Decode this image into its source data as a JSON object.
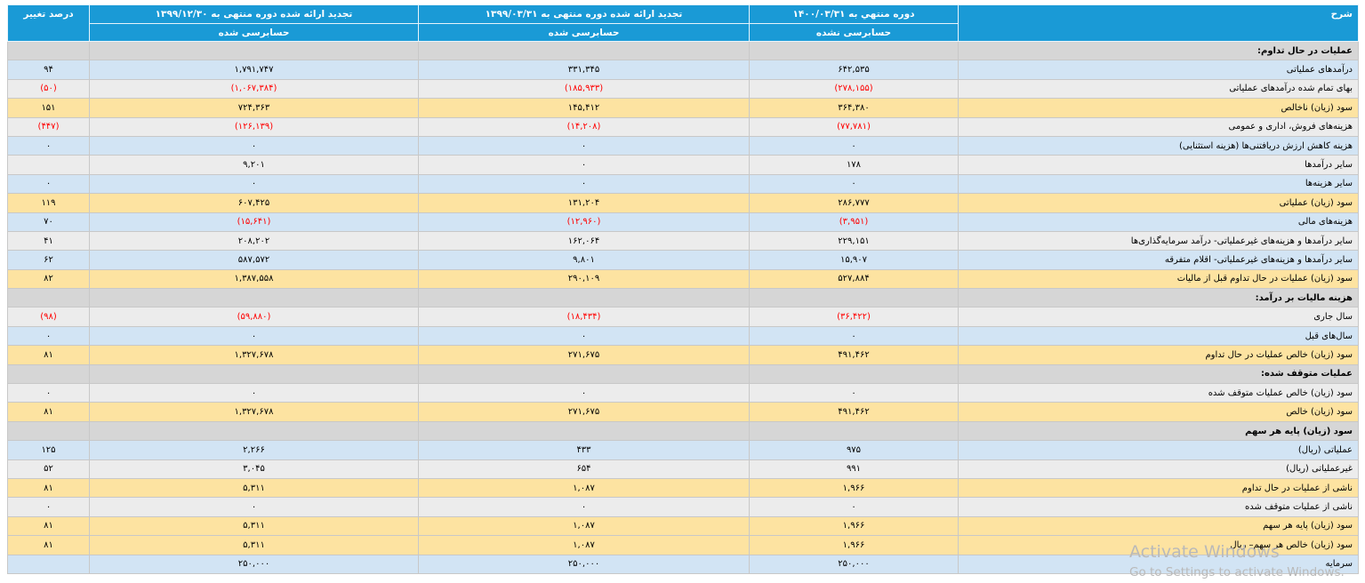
{
  "header": {
    "description": "شرح",
    "col1_title": "دوره منتهي به ۱۴۰۰/۰۳/۳۱",
    "col1_status": "حسابرسی نشده",
    "col2_title": "تجدید ارائه شده دوره منتهی به ۱۳۹۹/۰۳/۳۱",
    "col2_status": "حسابرسی شده",
    "col3_title": "تجدید ارائه شده دوره منتهی به ۱۳۹۹/۱۲/۳۰",
    "col3_status": "حسابرسی شده",
    "change": "درصد تغییر"
  },
  "rows": [
    {
      "type": "section",
      "label": "عملیات در حال تداوم:"
    },
    {
      "type": "blue",
      "label": "درآمدهای عملیاتی",
      "c1": "۶۴۲,۵۳۵",
      "c2": "۳۳۱,۳۴۵",
      "c3": "۱,۷۹۱,۷۴۷",
      "pct": "۹۴"
    },
    {
      "type": "gray",
      "label": "بهای تمام شده درآمدهای عملیاتی",
      "c1": "(۲۷۸,۱۵۵)",
      "c2": "(۱۸۵,۹۳۳)",
      "c3": "(۱,۰۶۷,۳۸۴)",
      "pct": "(۵۰)"
    },
    {
      "type": "yellow",
      "label": "سود (زیان) ناخالص",
      "c1": "۳۶۴,۳۸۰",
      "c2": "۱۴۵,۴۱۲",
      "c3": "۷۲۴,۳۶۳",
      "pct": "۱۵۱"
    },
    {
      "type": "gray",
      "label": "هزینه‌های فروش، اداری و عمومی",
      "c1": "(۷۷,۷۸۱)",
      "c2": "(۱۴,۲۰۸)",
      "c3": "(۱۲۶,۱۳۹)",
      "pct": "(۴۴۷)"
    },
    {
      "type": "blue",
      "label": "هزینه کاهش ارزش دریافتنی‌ها (هزینه استثنایی)",
      "c1": "۰",
      "c2": "۰",
      "c3": "۰",
      "pct": "۰"
    },
    {
      "type": "gray",
      "label": "سایر درآمدها",
      "c1": "۱۷۸",
      "c2": "۰",
      "c3": "۹,۲۰۱",
      "pct": ""
    },
    {
      "type": "blue",
      "label": "سایر هزینه‌ها",
      "c1": "۰",
      "c2": "۰",
      "c3": "۰",
      "pct": "۰"
    },
    {
      "type": "yellow",
      "label": "سود (زیان) عملیاتی",
      "c1": "۲۸۶,۷۷۷",
      "c2": "۱۳۱,۲۰۴",
      "c3": "۶۰۷,۴۲۵",
      "pct": "۱۱۹"
    },
    {
      "type": "blue",
      "label": "هزینه‌های مالی",
      "c1": "(۳,۹۵۱)",
      "c2": "(۱۲,۹۶۰)",
      "c3": "(۱۵,۶۴۱)",
      "pct": "۷۰"
    },
    {
      "type": "gray",
      "label": "سایر درآمدها و هزینه‌های غیرعملیاتی- درآمد سرمایه‌گذاری‌ها",
      "c1": "۲۲۹,۱۵۱",
      "c2": "۱۶۲,۰۶۴",
      "c3": "۲۰۸,۲۰۲",
      "pct": "۴۱"
    },
    {
      "type": "blue",
      "label": "سایر درآمدها و هزینه‌های غیرعملیاتی- اقلام متفرقه",
      "c1": "۱۵,۹۰۷",
      "c2": "۹,۸۰۱",
      "c3": "۵۸۷,۵۷۲",
      "pct": "۶۲"
    },
    {
      "type": "yellow",
      "label": "سود (زیان) عملیات در حال تداوم قبل از مالیات",
      "c1": "۵۲۷,۸۸۴",
      "c2": "۲۹۰,۱۰۹",
      "c3": "۱,۳۸۷,۵۵۸",
      "pct": "۸۲"
    },
    {
      "type": "section",
      "label": "هزینه مالیات بر درآمد:"
    },
    {
      "type": "gray",
      "label": "سال جاری",
      "c1": "(۳۶,۴۲۲)",
      "c2": "(۱۸,۴۳۴)",
      "c3": "(۵۹,۸۸۰)",
      "pct": "(۹۸)"
    },
    {
      "type": "blue",
      "label": "سال‌های قبل",
      "c1": "۰",
      "c2": "۰",
      "c3": "۰",
      "pct": "۰"
    },
    {
      "type": "yellow",
      "label": "سود (زیان) خالص عملیات در حال تداوم",
      "c1": "۴۹۱,۴۶۲",
      "c2": "۲۷۱,۶۷۵",
      "c3": "۱,۳۲۷,۶۷۸",
      "pct": "۸۱"
    },
    {
      "type": "section",
      "label": "عملیات متوقف شده:"
    },
    {
      "type": "gray",
      "label": "سود (زیان) خالص عملیات متوقف شده",
      "c1": "۰",
      "c2": "۰",
      "c3": "۰",
      "pct": "۰"
    },
    {
      "type": "yellow",
      "label": "سود (زیان) خالص",
      "c1": "۴۹۱,۴۶۲",
      "c2": "۲۷۱,۶۷۵",
      "c3": "۱,۳۲۷,۶۷۸",
      "pct": "۸۱"
    },
    {
      "type": "section",
      "label": "سود (زیان) پایه هر سهم"
    },
    {
      "type": "blue",
      "label": "عملیاتی (ریال)",
      "c1": "۹۷۵",
      "c2": "۴۳۳",
      "c3": "۲,۲۶۶",
      "pct": "۱۲۵"
    },
    {
      "type": "gray",
      "label": "غیرعملیاتی (ریال)",
      "c1": "۹۹۱",
      "c2": "۶۵۴",
      "c3": "۳,۰۴۵",
      "pct": "۵۲"
    },
    {
      "type": "yellow",
      "label": "ناشی از عملیات در حال تداوم",
      "c1": "۱,۹۶۶",
      "c2": "۱,۰۸۷",
      "c3": "۵,۳۱۱",
      "pct": "۸۱"
    },
    {
      "type": "gray",
      "label": "ناشی از عملیات متوقف شده",
      "c1": "۰",
      "c2": "۰",
      "c3": "۰",
      "pct": "۰"
    },
    {
      "type": "yellow",
      "label": "سود (زیان) پایه هر سهم",
      "c1": "۱,۹۶۶",
      "c2": "۱,۰۸۷",
      "c3": "۵,۳۱۱",
      "pct": "۸۱"
    },
    {
      "type": "yellow",
      "label": "سود (زیان) خالص هر سهم– ریال",
      "c1": "۱,۹۶۶",
      "c2": "۱,۰۸۷",
      "c3": "۵,۳۱۱",
      "pct": "۸۱"
    },
    {
      "type": "blue",
      "label": "سرمایه",
      "c1": "۲۵۰,۰۰۰",
      "c2": "۲۵۰,۰۰۰",
      "c3": "۲۵۰,۰۰۰",
      "pct": ""
    }
  ],
  "watermark": {
    "line1": "Activate Windows",
    "line2": "Go to Settings to activate Windows."
  }
}
